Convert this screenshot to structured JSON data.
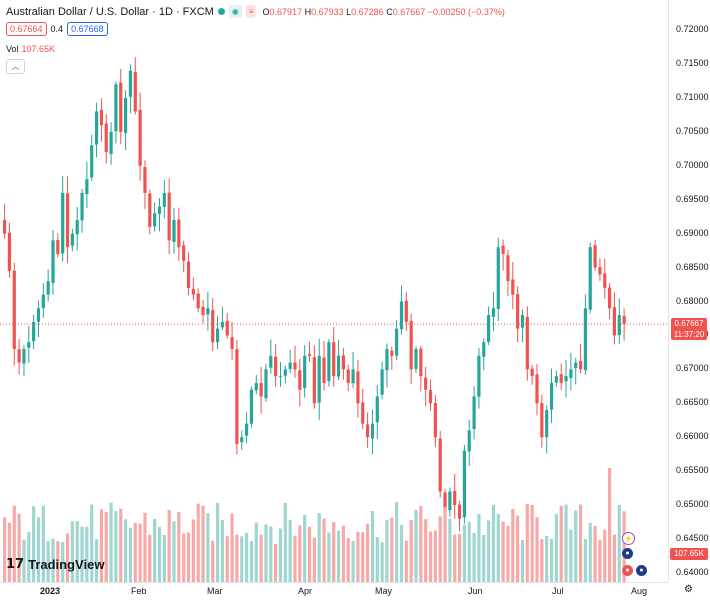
{
  "header": {
    "symbol_title": "Australian Dollar / U.S. Dollar · 1D · FXCM",
    "ohlc": {
      "open_label": "O",
      "open": "0.67917",
      "high_label": "H",
      "high": "0.67933",
      "low_label": "L",
      "low": "0.67286",
      "close_label": "C",
      "close": "0.67667",
      "change": "−0.00250 (−0.37%)"
    },
    "bid": "0.67664",
    "spread": "0.4",
    "ask": "0.67668"
  },
  "volume_row": {
    "label": "Vol",
    "value": "107.65K"
  },
  "price_tag": {
    "price": "0.67667",
    "countdown": "11:37:20"
  },
  "volume_tag": "107.65K",
  "logo_text": "TradingView",
  "colors": {
    "up": "#26a69a",
    "down": "#ef5350",
    "vol_up": "#9fd6d0",
    "vol_down": "#f7a9a7"
  },
  "chart_data": {
    "type": "candlestick",
    "y_ticks": [
      "0.72000",
      "0.71500",
      "0.71000",
      "0.70500",
      "0.70000",
      "0.69500",
      "0.69000",
      "0.68500",
      "0.68000",
      "0.67500",
      "0.67000",
      "0.66500",
      "0.66000",
      "0.65500",
      "0.65000",
      "0.64500",
      "0.64000"
    ],
    "x_ticks": [
      "2023",
      "Feb",
      "Mar",
      "Apr",
      "May",
      "Jun",
      "Jul",
      "Aug"
    ],
    "x_ticks_bold": [
      "2023"
    ],
    "last_price": 0.67667,
    "volume_last": "107.65K",
    "closes": [
      0.69,
      0.6845,
      0.673,
      0.671,
      0.673,
      0.674,
      0.677,
      0.679,
      0.681,
      0.683,
      0.689,
      0.687,
      0.696,
      0.688,
      0.69,
      0.692,
      0.696,
      0.698,
      0.703,
      0.708,
      0.706,
      0.702,
      0.705,
      0.712,
      0.705,
      0.71,
      0.714,
      0.708,
      0.7,
      0.696,
      0.691,
      0.693,
      0.694,
      0.696,
      0.689,
      0.692,
      0.688,
      0.686,
      0.682,
      0.681,
      0.679,
      0.678,
      0.679,
      0.674,
      0.676,
      0.677,
      0.675,
      0.673,
      0.659,
      0.66,
      0.662,
      0.667,
      0.668,
      0.666,
      0.67,
      0.672,
      0.669,
      0.669,
      0.67,
      0.671,
      0.67,
      0.667,
      0.672,
      0.672,
      0.665,
      0.672,
      0.668,
      0.674,
      0.669,
      0.672,
      0.67,
      0.668,
      0.67,
      0.665,
      0.662,
      0.66,
      0.662,
      0.666,
      0.67,
      0.673,
      0.672,
      0.676,
      0.68,
      0.677,
      0.67,
      0.673,
      0.669,
      0.667,
      0.665,
      0.66,
      0.652,
      0.649,
      0.652,
      0.65,
      0.648,
      0.658,
      0.661,
      0.666,
      0.672,
      0.674,
      0.678,
      0.679,
      0.688,
      0.687,
      0.683,
      0.681,
      0.676,
      0.678,
      0.67,
      0.669,
      0.665,
      0.66,
      0.664,
      0.668,
      0.669,
      0.668,
      0.669,
      0.67,
      0.671,
      0.67,
      0.679,
      0.688,
      0.685,
      0.684,
      0.682,
      0.679,
      0.675,
      0.678,
      0.6767
    ]
  }
}
